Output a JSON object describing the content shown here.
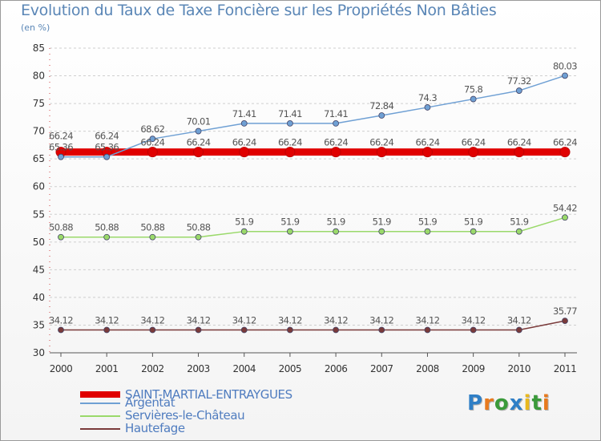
{
  "title": "Evolution du Taux de Taxe Foncière sur les Propriétés Non Bâties",
  "unit_label": "(en %)",
  "logo": {
    "letters": [
      "P",
      "r",
      "o",
      "x",
      "i",
      "t",
      "i"
    ],
    "colors": [
      "#2f7fc6",
      "#e87a1e",
      "#3a9a3a",
      "#2f7fc6",
      "#e8b81e",
      "#3a9a3a",
      "#e87a1e"
    ]
  },
  "chart_data": {
    "type": "line",
    "title": "Evolution du Taux de Taxe Foncière sur les Propriétés Non Bâties",
    "ylabel": "(en %)",
    "xlabel": "",
    "x": [
      "2000",
      "2001",
      "2002",
      "2003",
      "2004",
      "2005",
      "2006",
      "2007",
      "2008",
      "2009",
      "2010",
      "2011"
    ],
    "ylim": [
      30,
      85
    ],
    "yticks": [
      "30",
      "35",
      "40",
      "45",
      "50",
      "55",
      "60",
      "65",
      "70",
      "75",
      "80",
      "85"
    ],
    "grid": "horizontal dashed",
    "legend_position": "bottom-left",
    "series": [
      {
        "name": "SAINT-MARTIAL-ENTRAYGUES",
        "color": "#e00000",
        "values": [
          66.24,
          66.24,
          66.24,
          66.24,
          66.24,
          66.24,
          66.24,
          66.24,
          66.24,
          66.24,
          66.24,
          66.24
        ],
        "labels": [
          "66.24",
          "66.24",
          "66.24",
          "66.24",
          "66.24",
          "66.24",
          "66.24",
          "66.24",
          "66.24",
          "66.24",
          "66.24",
          "66.24"
        ]
      },
      {
        "name": "Argentat",
        "color": "#6fa0d4",
        "values": [
          65.36,
          65.36,
          68.62,
          70.01,
          71.41,
          71.41,
          71.41,
          72.84,
          74.3,
          75.8,
          77.32,
          80.03
        ],
        "labels": [
          "65.36",
          "65.36",
          "68.62",
          "70.01",
          "71.41",
          "71.41",
          "71.41",
          "72.84",
          "74.3",
          "75.8",
          "77.32",
          "80.03"
        ]
      },
      {
        "name": "Servières-le-Château",
        "color": "#9ad96a",
        "values": [
          50.88,
          50.88,
          50.88,
          50.88,
          51.9,
          51.9,
          51.9,
          51.9,
          51.9,
          51.9,
          51.9,
          54.42
        ],
        "labels": [
          "50.88",
          "50.88",
          "50.88",
          "50.88",
          "51.9",
          "51.9",
          "51.9",
          "51.9",
          "51.9",
          "51.9",
          "51.9",
          "54.42"
        ]
      },
      {
        "name": "Hautefage",
        "color": "#7a3a3a",
        "values": [
          34.12,
          34.12,
          34.12,
          34.12,
          34.12,
          34.12,
          34.12,
          34.12,
          34.12,
          34.12,
          34.12,
          35.77
        ],
        "labels": [
          "34.12",
          "34.12",
          "34.12",
          "34.12",
          "34.12",
          "34.12",
          "34.12",
          "34.12",
          "34.12",
          "34.12",
          "34.12",
          "35.77"
        ]
      }
    ]
  }
}
